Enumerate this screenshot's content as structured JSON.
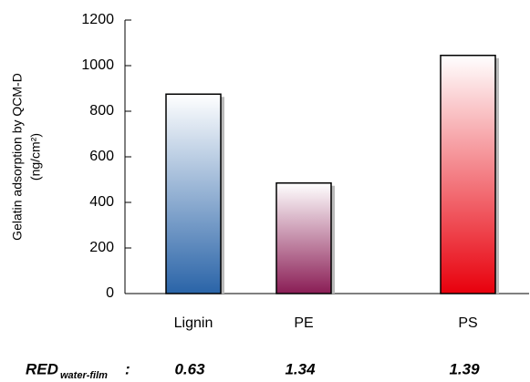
{
  "chart_data": {
    "type": "bar",
    "y_label": [
      "Gelatin adsorption by QCM-D",
      "(ng/cm²)"
    ],
    "categories": [
      "Lignin",
      "PE",
      "PS"
    ],
    "values": [
      875,
      485,
      1045
    ],
    "colors": [
      "#2a64a8",
      "#8a1d55",
      "#e8000c"
    ],
    "ylim": [
      0,
      1200
    ],
    "yticks": [
      0,
      200,
      400,
      600,
      800,
      1000,
      1200
    ],
    "red": {
      "label": "RED",
      "subscript": "water-film",
      "suffix": ":",
      "values": [
        0.63,
        1.34,
        1.39
      ]
    }
  }
}
